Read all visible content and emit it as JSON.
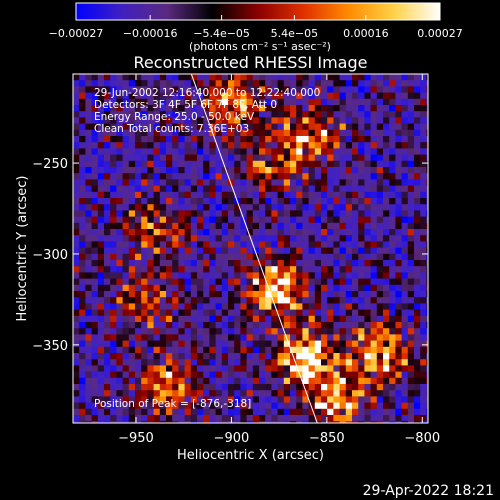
{
  "chart_data": {
    "type": "heatmap",
    "title": "Reconstructed RHESSI Image",
    "xlabel": "Heliocentric X (arcsec)",
    "ylabel": "Heliocentric Y (arcsec)",
    "xlim": [
      -983,
      -797
    ],
    "ylim": [
      -393,
      -201
    ],
    "x_ticks": [
      -950,
      -900,
      -850,
      -800
    ],
    "x_tick_labels": [
      "−950",
      "−900",
      "−850",
      "−800"
    ],
    "y_ticks": [
      -250,
      -300,
      -350
    ],
    "y_tick_labels": [
      "−250",
      "−300",
      "−350"
    ],
    "colorbar": {
      "min": -0.00027,
      "max": 0.00027,
      "ticks": [
        -0.00027,
        -0.00016,
        -5.4e-05,
        5.4e-05,
        0.00016,
        0.00027
      ],
      "tick_labels": [
        "−0.00027",
        "−0.00016",
        "−5.4e−05",
        "5.4e−05",
        "0.00016",
        "0.00027"
      ],
      "unit_label": "(photons cm⁻² s⁻¹ asec⁻²)",
      "colors": [
        "#0000ff",
        "#4020c0",
        "#5a2a80",
        "#000000",
        "#8a0000",
        "#e03000",
        "#ff8c00",
        "#ffd24a",
        "#ffffff"
      ]
    },
    "annotations": [
      "29-Jun-2002 12:16:40.000 to 12:22:40.000",
      "Detectors: 3F 4F 5F 6F 7F 8F, Att 0",
      "Energy Range: 25.0 - 50.0 keV",
      "Clean    Total counts: 7.36E+03"
    ],
    "peak_label": "Position of Peak = [-876,-318]",
    "peak": {
      "x": -876,
      "y": -318
    },
    "limb_line": {
      "x1": -921,
      "y1": -201,
      "x2": -855,
      "y2": -393
    },
    "bright_sources": [
      {
        "x": -876,
        "y": -318,
        "intensity": 1.0
      },
      {
        "x": -862,
        "y": -357,
        "intensity": 0.9
      },
      {
        "x": -822,
        "y": -355,
        "intensity": 0.85
      },
      {
        "x": -846,
        "y": -380,
        "intensity": 0.8
      },
      {
        "x": -900,
        "y": -216,
        "intensity": 0.75
      },
      {
        "x": -858,
        "y": -234,
        "intensity": 0.7
      },
      {
        "x": -934,
        "y": -373,
        "intensity": 0.7
      },
      {
        "x": -940,
        "y": -287,
        "intensity": 0.55
      },
      {
        "x": -945,
        "y": -326,
        "intensity": 0.5
      },
      {
        "x": -880,
        "y": -250,
        "intensity": 0.5
      }
    ]
  },
  "footer": {
    "timestamp": "29-Apr-2022 18:21"
  },
  "style": {
    "text_color": "#ffffff",
    "background": "#000000"
  }
}
